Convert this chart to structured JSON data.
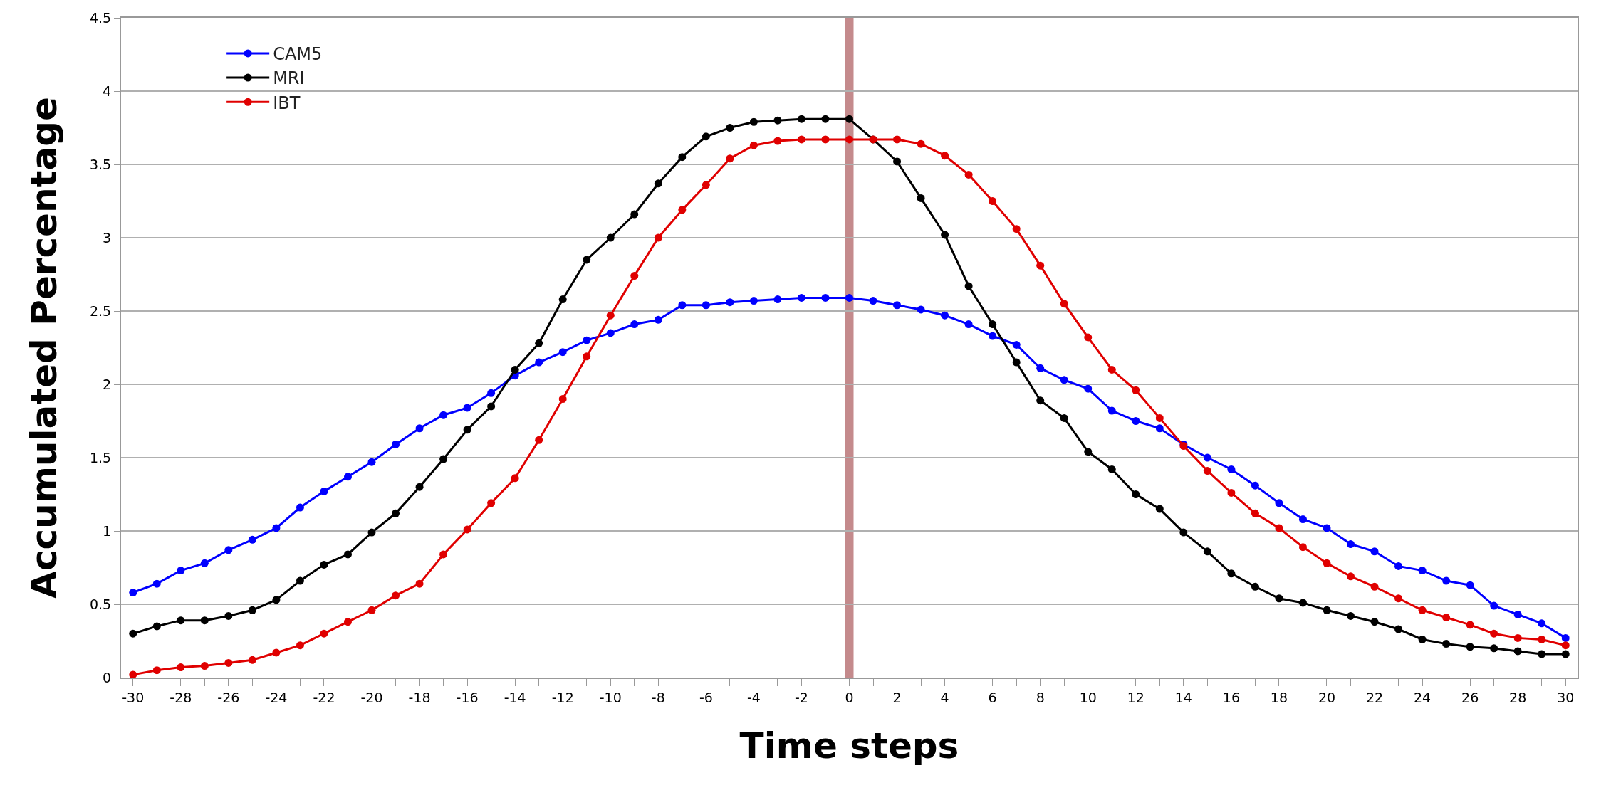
{
  "chart_data": {
    "type": "line",
    "xlabel": "Time steps",
    "ylabel": "Accumulated Percentage",
    "x": [
      -30,
      -29,
      -28,
      -27,
      -26,
      -25,
      -24,
      -23,
      -22,
      -21,
      -20,
      -19,
      -18,
      -17,
      -16,
      -15,
      -14,
      -13,
      -12,
      -11,
      -10,
      -9,
      -8,
      -7,
      -6,
      -5,
      -4,
      -3,
      -2,
      -1,
      0,
      1,
      2,
      3,
      4,
      5,
      6,
      7,
      8,
      9,
      10,
      11,
      12,
      13,
      14,
      15,
      16,
      17,
      18,
      19,
      20,
      21,
      22,
      23,
      24,
      25,
      26,
      27,
      28,
      29,
      30
    ],
    "series": [
      {
        "name": "CAM5",
        "color": "#0000ff",
        "values": [
          0.58,
          0.64,
          0.73,
          0.78,
          0.87,
          0.94,
          1.02,
          1.16,
          1.27,
          1.37,
          1.47,
          1.59,
          1.7,
          1.79,
          1.84,
          1.94,
          2.06,
          2.15,
          2.22,
          2.3,
          2.35,
          2.41,
          2.44,
          2.54,
          2.54,
          2.56,
          2.57,
          2.58,
          2.59,
          2.59,
          2.59,
          2.57,
          2.54,
          2.51,
          2.47,
          2.41,
          2.33,
          2.27,
          2.11,
          2.03,
          1.97,
          1.82,
          1.75,
          1.7,
          1.59,
          1.5,
          1.42,
          1.31,
          1.19,
          1.08,
          1.02,
          0.91,
          0.86,
          0.76,
          0.73,
          0.66,
          0.63,
          0.49,
          0.43,
          0.37,
          0.27
        ]
      },
      {
        "name": "MRI",
        "color": "#000000",
        "values": [
          0.3,
          0.35,
          0.39,
          0.39,
          0.42,
          0.46,
          0.53,
          0.66,
          0.77,
          0.84,
          0.99,
          1.12,
          1.3,
          1.49,
          1.69,
          1.85,
          2.1,
          2.28,
          2.58,
          2.85,
          3.0,
          3.16,
          3.37,
          3.55,
          3.69,
          3.75,
          3.79,
          3.8,
          3.81,
          3.81,
          3.81,
          3.67,
          3.52,
          3.27,
          3.02,
          2.67,
          2.41,
          2.15,
          1.89,
          1.77,
          1.54,
          1.42,
          1.25,
          1.15,
          0.99,
          0.86,
          0.71,
          0.62,
          0.54,
          0.51,
          0.46,
          0.42,
          0.38,
          0.33,
          0.26,
          0.23,
          0.21,
          0.2,
          0.18,
          0.16,
          0.16
        ]
      },
      {
        "name": "IBT",
        "color": "#e00000",
        "values": [
          0.02,
          0.05,
          0.07,
          0.08,
          0.1,
          0.12,
          0.17,
          0.22,
          0.3,
          0.38,
          0.46,
          0.56,
          0.64,
          0.84,
          1.01,
          1.19,
          1.36,
          1.62,
          1.9,
          2.19,
          2.47,
          2.74,
          3.0,
          3.19,
          3.36,
          3.54,
          3.63,
          3.66,
          3.67,
          3.67,
          3.67,
          3.67,
          3.67,
          3.64,
          3.56,
          3.43,
          3.25,
          3.06,
          2.81,
          2.55,
          2.32,
          2.1,
          1.96,
          1.77,
          1.58,
          1.41,
          1.26,
          1.12,
          1.02,
          0.89,
          0.78,
          0.69,
          0.62,
          0.54,
          0.46,
          0.41,
          0.36,
          0.3,
          0.27,
          0.26,
          0.22
        ]
      }
    ],
    "xlim": [
      -30.5,
      30.5
    ],
    "xticks": [
      -30,
      {
        "value": -29,
        "label": null
      },
      -28,
      {
        "value": -27,
        "label": null
      },
      -26,
      {
        "value": -25,
        "label": null
      },
      -24,
      {
        "value": -23,
        "label": null
      },
      -22,
      {
        "value": -21,
        "label": null
      },
      -20,
      {
        "value": -19,
        "label": null
      },
      -18,
      {
        "value": -17,
        "label": null
      },
      -16,
      {
        "value": -15,
        "label": null
      },
      -14,
      {
        "value": -13,
        "label": null
      },
      -12,
      {
        "value": -11,
        "label": null
      },
      -10,
      {
        "value": -9,
        "label": null
      },
      -8,
      {
        "value": -7,
        "label": null
      },
      -6,
      {
        "value": -5,
        "label": null
      },
      -4,
      {
        "value": -3,
        "label": null
      },
      -2,
      {
        "value": -1,
        "label": null
      },
      0,
      {
        "value": 1,
        "label": null
      },
      2,
      {
        "value": 3,
        "label": null
      },
      4,
      {
        "value": 5,
        "label": null
      },
      6,
      {
        "value": 7,
        "label": null
      },
      8,
      {
        "value": 9,
        "label": null
      },
      10,
      {
        "value": 11,
        "label": null
      },
      12,
      {
        "value": 13,
        "label": null
      },
      14,
      {
        "value": 15,
        "label": null
      },
      16,
      {
        "value": 17,
        "label": null
      },
      18,
      {
        "value": 19,
        "label": null
      },
      20,
      {
        "value": 21,
        "label": null
      },
      22,
      {
        "value": 23,
        "label": null
      },
      24,
      {
        "value": 25,
        "label": null
      },
      26,
      {
        "value": 27,
        "label": null
      },
      28,
      {
        "value": 29,
        "label": null
      },
      30
    ],
    "ylim": [
      0,
      4.5
    ],
    "yticks": [
      0,
      0.5,
      1,
      1.5,
      2,
      2.5,
      3,
      3.5,
      4,
      4.5
    ],
    "ref_lines": [
      {
        "axis": "x",
        "value": 0,
        "color": "#c48a8c"
      }
    ],
    "grid": "y",
    "legend": "top left",
    "marker": "circle",
    "line_style": "solid"
  }
}
